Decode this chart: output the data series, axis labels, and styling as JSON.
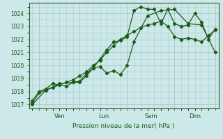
{
  "xlabel": "Pression niveau de la mer( hPa )",
  "bg_color": "#cce8e8",
  "grid_color": "#aacccc",
  "line_color": "#1a5c1a",
  "ylim": [
    1016.7,
    1024.8
  ],
  "xlim": [
    -0.5,
    27.5
  ],
  "yticks": [
    1017,
    1018,
    1019,
    1020,
    1021,
    1022,
    1023,
    1024
  ],
  "xtick_labels": [
    "Ven",
    "Lun",
    "Sam",
    "Dim"
  ],
  "vline_positions": [
    1,
    7,
    14,
    21,
    27
  ],
  "line1_x": [
    0,
    1,
    2,
    3,
    4,
    5,
    6,
    7,
    8,
    9,
    10,
    11,
    12,
    13,
    14,
    15,
    16,
    17,
    18,
    19,
    20,
    21,
    22,
    23,
    24,
    25,
    26,
    27
  ],
  "line1_y": [
    1017.1,
    1017.9,
    1018.1,
    1018.3,
    1018.5,
    1018.7,
    1018.9,
    1019.2,
    1019.5,
    1020.0,
    1020.4,
    1021.0,
    1021.5,
    1022.0,
    1022.3,
    1022.6,
    1022.9,
    1023.1,
    1023.2,
    1023.4,
    1023.0,
    1022.2,
    1022.0,
    1022.1,
    1022.0,
    1021.8,
    1022.3,
    1022.7
  ],
  "line2_x": [
    0,
    1,
    2,
    3,
    4,
    5,
    6,
    7,
    8,
    9,
    10,
    11,
    12,
    13,
    14,
    15,
    16,
    17,
    18,
    19,
    20,
    21,
    22,
    23,
    24,
    25,
    26,
    27
  ],
  "line2_y": [
    1017.3,
    1018.0,
    1018.2,
    1018.6,
    1018.5,
    1018.4,
    1018.7,
    1018.7,
    1019.2,
    1019.8,
    1020.5,
    1021.2,
    1021.8,
    1021.9,
    1022.2,
    1024.2,
    1024.5,
    1024.3,
    1024.3,
    1023.2,
    1024.3,
    1023.2,
    1023.0,
    1023.1,
    1024.0,
    1023.3,
    1022.0,
    1022.8
  ],
  "line3_x": [
    0,
    2,
    4,
    6,
    7,
    8,
    9,
    10,
    11,
    12,
    13,
    14,
    15,
    17,
    19,
    21,
    23,
    25,
    27
  ],
  "line3_y": [
    1017.0,
    1018.1,
    1018.6,
    1018.7,
    1018.8,
    1019.4,
    1019.8,
    1019.9,
    1019.4,
    1019.6,
    1019.3,
    1020.0,
    1021.8,
    1023.8,
    1024.2,
    1024.3,
    1023.2,
    1023.1,
    1021.0
  ]
}
